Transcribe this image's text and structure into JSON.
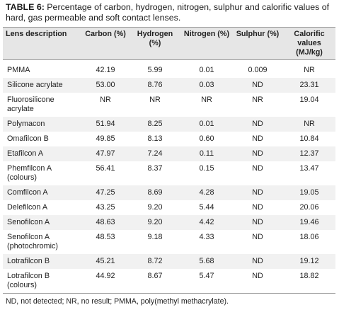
{
  "caption": {
    "label": "TABLE 6:",
    "text": " Percentage of carbon, hydrogen, nitrogen, sulphur and calorific values of hard, gas permeable and soft contact lenses."
  },
  "table": {
    "headers": [
      "Lens description",
      "Carbon (%)",
      "Hydrogen (%)",
      "Nitrogen (%)",
      "Sulphur (%)",
      "Calorific values (MJ/kg)"
    ],
    "rows": [
      [
        "PMMA",
        "42.19",
        "5.99",
        "0.01",
        "0.009",
        "NR"
      ],
      [
        "Silicone acrylate",
        "53.00",
        "8.76",
        "0.03",
        "ND",
        "23.31"
      ],
      [
        "Fluorosilicone acrylate",
        "NR",
        "NR",
        "NR",
        "NR",
        "19.04"
      ],
      [
        "Polymacon",
        "51.94",
        "8.25",
        "0.01",
        "ND",
        "NR"
      ],
      [
        "Omafilcon B",
        "49.85",
        "8.13",
        "0.60",
        "ND",
        "10.84"
      ],
      [
        "Etafilcon A",
        "47.97",
        "7.24",
        "0.11",
        "ND",
        "12.37"
      ],
      [
        "Phemfilcon A (colours)",
        "56.41",
        "8.37",
        "0.15",
        "ND",
        "13.47"
      ],
      [
        "Comfilcon A",
        "47.25",
        "8.69",
        "4.28",
        "ND",
        "19.05"
      ],
      [
        "Delefilcon A",
        "43.25",
        "9.20",
        "5.44",
        "ND",
        "20.06"
      ],
      [
        "Senofilcon A",
        "48.63",
        "9.20",
        "4.42",
        "ND",
        "19.46"
      ],
      [
        "Senofilcon A (photochromic)",
        "48.53",
        "9.18",
        "4.33",
        "ND",
        "18.06"
      ],
      [
        "Lotrafilcon B",
        "45.21",
        "8.72",
        "5.68",
        "ND",
        "19.12"
      ],
      [
        "Lotrafilcon B (colours)",
        "44.92",
        "8.67",
        "5.47",
        "ND",
        "18.82"
      ]
    ]
  },
  "footnote": "ND, not detected; NR, no result; PMMA, poly(methyl methacrylate)."
}
